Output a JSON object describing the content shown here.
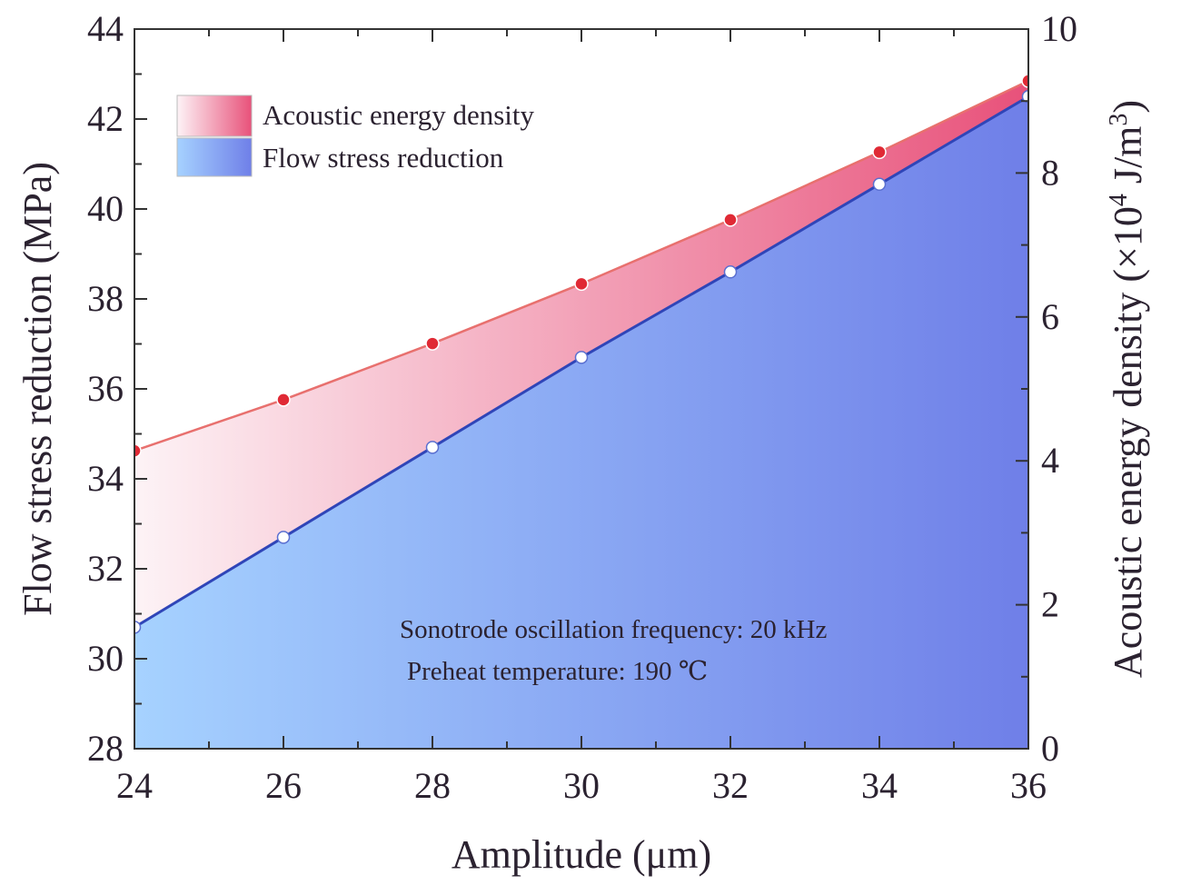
{
  "chart_data": {
    "type": "area",
    "x": [
      24,
      26,
      28,
      30,
      32,
      34,
      36
    ],
    "xlabel": "Amplitude (μm)",
    "xlim": [
      24,
      36
    ],
    "x_ticks": [
      "24",
      "26",
      "28",
      "30",
      "32",
      "34",
      "36"
    ],
    "ylabel": "Flow stress reduction (MPa)",
    "ylim": [
      28,
      44
    ],
    "y_ticks": [
      "28",
      "30",
      "32",
      "34",
      "36",
      "38",
      "40",
      "42",
      "44"
    ],
    "y2label_prefix": "Acoustic energy density (×10",
    "y2label_exp1": "4",
    "y2label_mid": " J/m",
    "y2label_exp2": "3",
    "y2label_suffix": ")",
    "y2lim": [
      0,
      10
    ],
    "y2_ticks": [
      "0",
      "2",
      "4",
      "6",
      "8",
      "10"
    ],
    "grid": false,
    "legend_position": "top-left",
    "series": [
      {
        "name": "Acoustic energy density",
        "axis": "right",
        "values": [
          4.14,
          4.85,
          5.63,
          6.46,
          7.35,
          8.29,
          9.28
        ],
        "line_color": "#e8706e",
        "marker_color": "#e02a35",
        "fill_from": "#fdf3f6",
        "fill_to": "#e8517a"
      },
      {
        "name": "Flow stress reduction",
        "axis": "left",
        "values": [
          30.7,
          32.7,
          34.7,
          36.7,
          38.6,
          40.55,
          42.5
        ],
        "line_color": "#2f45b8",
        "marker_color": "#ffffff",
        "fill_from": "#a6d2ff",
        "fill_to": "#6f7fe8"
      }
    ],
    "annotations": [
      "Sonotrode oscillation frequency: 20 kHz",
      "Preheat temperature: 190 ℃"
    ]
  }
}
